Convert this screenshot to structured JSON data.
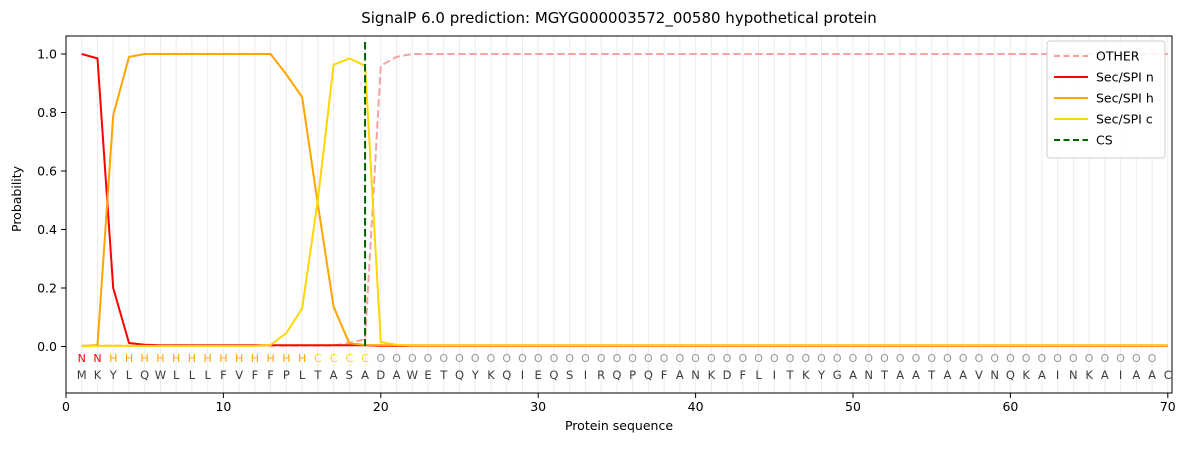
{
  "chart_data": {
    "type": "line",
    "title": "SignalP 6.0 prediction: MGYG000003572_00580 hypothetical protein",
    "xlabel": "Protein sequence",
    "ylabel": "Probability",
    "xticks": [
      0,
      10,
      20,
      30,
      40,
      50,
      60,
      70
    ],
    "ytick_labels": [
      "0.0",
      "0.2",
      "0.4",
      "0.6",
      "0.8",
      "1.0"
    ],
    "xlim": [
      0,
      70.3
    ],
    "ylim": [
      -0.16,
      1.06
    ],
    "grid": "faint vertical gridline at every residue position 1-70",
    "x_positions": "residue index 1 to 70",
    "series": [
      {
        "name": "OTHER",
        "color": "#f6a2a2",
        "style": "dashed",
        "values": [
          0.003,
          0.003,
          0.003,
          0.003,
          0.003,
          0.003,
          0.003,
          0.003,
          0.003,
          0.003,
          0.003,
          0.003,
          0.003,
          0.003,
          0.003,
          0.003,
          0.003,
          0.012,
          0.025,
          0.96,
          0.99,
          1.0,
          1.0,
          1.0,
          1.0,
          1.0,
          1.0,
          1.0,
          1.0,
          1.0,
          1.0,
          1.0,
          1.0,
          1.0,
          1.0,
          1.0,
          1.0,
          1.0,
          1.0,
          1.0,
          1.0,
          1.0,
          1.0,
          1.0,
          1.0,
          1.0,
          1.0,
          1.0,
          1.0,
          1.0,
          1.0,
          1.0,
          1.0,
          1.0,
          1.0,
          1.0,
          1.0,
          1.0,
          1.0,
          1.0,
          1.0,
          1.0,
          1.0,
          1.0,
          1.0,
          1.0,
          1.0,
          1.0,
          1.0,
          1.0
        ]
      },
      {
        "name": "Sec/SPI n",
        "color": "#ff0000",
        "style": "solid",
        "values": [
          1.0,
          0.985,
          0.2,
          0.012,
          0.006,
          0.004,
          0.004,
          0.004,
          0.004,
          0.004,
          0.004,
          0.004,
          0.004,
          0.004,
          0.004,
          0.004,
          0.004,
          0.004,
          0.004,
          0.002,
          0.002,
          0.002,
          0.002,
          0.002,
          0.002,
          0.002,
          0.002,
          0.002,
          0.002,
          0.002,
          0.002,
          0.002,
          0.002,
          0.002,
          0.002,
          0.002,
          0.002,
          0.002,
          0.002,
          0.002,
          0.002,
          0.002,
          0.002,
          0.002,
          0.002,
          0.002,
          0.002,
          0.002,
          0.002,
          0.002,
          0.002,
          0.002,
          0.002,
          0.002,
          0.002,
          0.002,
          0.002,
          0.002,
          0.002,
          0.002,
          0.002,
          0.002,
          0.002,
          0.002,
          0.002,
          0.002,
          0.002,
          0.002,
          0.002,
          0.002
        ]
      },
      {
        "name": "Sec/SPI h",
        "color": "#ffa500",
        "style": "solid",
        "values": [
          0.001,
          0.005,
          0.79,
          0.99,
          1.0,
          1.0,
          1.0,
          1.0,
          1.0,
          1.0,
          1.0,
          1.0,
          1.0,
          0.93,
          0.853,
          0.487,
          0.136,
          0.011,
          0.005,
          0.004,
          0.004,
          0.004,
          0.004,
          0.004,
          0.004,
          0.004,
          0.004,
          0.004,
          0.004,
          0.004,
          0.004,
          0.004,
          0.004,
          0.004,
          0.004,
          0.004,
          0.004,
          0.004,
          0.004,
          0.004,
          0.004,
          0.004,
          0.004,
          0.004,
          0.004,
          0.004,
          0.004,
          0.004,
          0.004,
          0.004,
          0.004,
          0.004,
          0.004,
          0.004,
          0.004,
          0.004,
          0.004,
          0.004,
          0.004,
          0.004,
          0.004,
          0.004,
          0.004,
          0.004,
          0.004,
          0.004,
          0.004,
          0.004,
          0.004,
          0.004
        ]
      },
      {
        "name": "Sec/SPI c",
        "color": "#ffd700",
        "style": "solid",
        "values": [
          0.002,
          0.002,
          0.002,
          0.002,
          0.002,
          0.002,
          0.002,
          0.002,
          0.002,
          0.002,
          0.002,
          0.002,
          0.005,
          0.046,
          0.13,
          0.5,
          0.963,
          0.985,
          0.96,
          0.015,
          0.006,
          0.003,
          0.003,
          0.003,
          0.003,
          0.003,
          0.003,
          0.003,
          0.003,
          0.003,
          0.003,
          0.003,
          0.003,
          0.003,
          0.003,
          0.003,
          0.003,
          0.003,
          0.003,
          0.003,
          0.003,
          0.003,
          0.003,
          0.003,
          0.003,
          0.003,
          0.003,
          0.003,
          0.003,
          0.003,
          0.003,
          0.003,
          0.003,
          0.003,
          0.003,
          0.003,
          0.003,
          0.003,
          0.003,
          0.003,
          0.003,
          0.003,
          0.003,
          0.003,
          0.003,
          0.003,
          0.003,
          0.003,
          0.003,
          0.003
        ]
      }
    ],
    "cs_marker": {
      "label": "CS",
      "x": 19,
      "color": "#006400",
      "style": "dashed-vertical"
    },
    "legend": {
      "position": "upper-right",
      "entries": [
        {
          "label": "OTHER",
          "color": "#f6a2a2",
          "dashed": true
        },
        {
          "label": "Sec/SPI n",
          "color": "#ff0000",
          "dashed": false
        },
        {
          "label": "Sec/SPI h",
          "color": "#ffa500",
          "dashed": false
        },
        {
          "label": "Sec/SPI c",
          "color": "#ffd700",
          "dashed": false
        },
        {
          "label": "CS",
          "color": "#006400",
          "dashed": true
        }
      ]
    },
    "sequence_track": {
      "region_labels": "NNHHHHHHHHHHHHHCCCCOOOOOOOOOOOOOOOOOOOOOOOOOOOOOOOOOOOOOOOOOOOOOOOOOO",
      "sequence": "MKYLQWLLLFVFFPLTASADAWETQYKQIEQSIRQPQFANKDFLITKYGANTAATAAVNQKAINKAIAAC",
      "region_colors": {
        "N": "#ff0000",
        "H": "#ffa500",
        "C": "#ffd700",
        "O": "#969696"
      },
      "sequence_color": "#3c3c3c"
    }
  }
}
